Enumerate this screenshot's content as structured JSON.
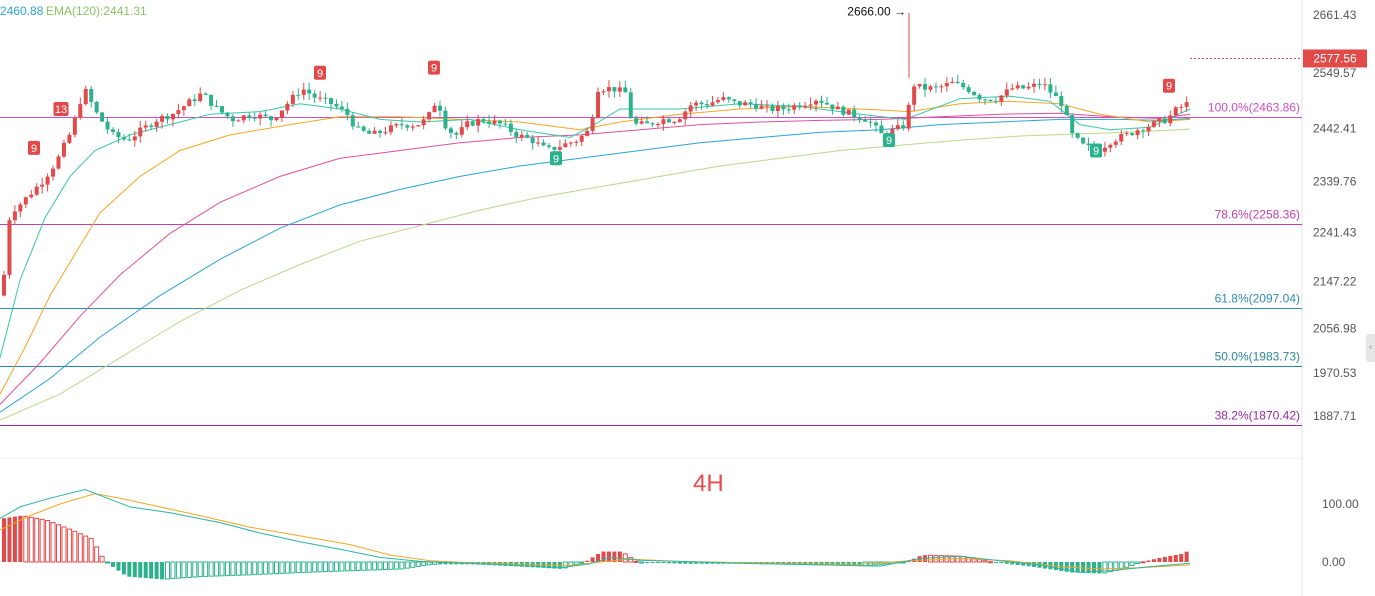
{
  "header": {
    "ema_a": "2460.88",
    "ema_b_label": "EMA(120):2441.31"
  },
  "timeframe": "4H",
  "colors": {
    "up": "#e24a4a",
    "down": "#2bb28c",
    "ema_short": "#35c7a8",
    "ema_mid": "#f5a623",
    "ema_pink": "#e0509a",
    "ema_blue": "#2aa5d6",
    "ema_long": "#b8d98a",
    "diff": "#2bb4a8",
    "dea": "#f5a623"
  },
  "chart_data": {
    "type": "candlestick",
    "y_axis_ticks": [
      "2661.43",
      "2549.57",
      "2442.41",
      "2339.76",
      "2241.43",
      "2147.22",
      "2056.98",
      "1970.53",
      "1887.71"
    ],
    "ylim": [
      1870,
      2680
    ],
    "current_price": "2577.56",
    "high_marker": "2666.00",
    "fib_levels": [
      {
        "label": "100.0%(2463.86)",
        "value": 2463.86,
        "color": "#d04fc3"
      },
      {
        "label": "78.6%(2258.36)",
        "value": 2258.36,
        "color": "#c13fb0"
      },
      {
        "label": "61.8%(2097.04)",
        "value": 2097.04,
        "color": "#2f8bb3"
      },
      {
        "label": "50.0%(1983.73)",
        "value": 1983.73,
        "color": "#2a86a0"
      },
      {
        "label": "38.2%(1870.42)",
        "value": 1870.42,
        "color": "#9a2aa8"
      }
    ],
    "path_points": [
      [
        0,
        2120
      ],
      [
        8,
        2280
      ],
      [
        20,
        2300
      ],
      [
        40,
        2340
      ],
      [
        55,
        2380
      ],
      [
        70,
        2440
      ],
      [
        82,
        2520
      ],
      [
        95,
        2470
      ],
      [
        110,
        2430
      ],
      [
        125,
        2420
      ],
      [
        140,
        2440
      ],
      [
        155,
        2460
      ],
      [
        170,
        2470
      ],
      [
        185,
        2490
      ],
      [
        200,
        2510
      ],
      [
        215,
        2480
      ],
      [
        230,
        2460
      ],
      [
        250,
        2470
      ],
      [
        270,
        2460
      ],
      [
        285,
        2490
      ],
      [
        300,
        2520
      ],
      [
        315,
        2500
      ],
      [
        330,
        2490
      ],
      [
        345,
        2470
      ],
      [
        355,
        2440
      ],
      [
        370,
        2430
      ],
      [
        385,
        2440
      ],
      [
        400,
        2450
      ],
      [
        415,
        2450
      ],
      [
        425,
        2460
      ],
      [
        435,
        2500
      ],
      [
        445,
        2440
      ],
      [
        455,
        2430
      ],
      [
        465,
        2450
      ],
      [
        480,
        2460
      ],
      [
        500,
        2450
      ],
      [
        515,
        2430
      ],
      [
        530,
        2420
      ],
      [
        545,
        2400
      ],
      [
        560,
        2410
      ],
      [
        575,
        2420
      ],
      [
        588,
        2440
      ],
      [
        595,
        2520
      ],
      [
        610,
        2520
      ],
      [
        625,
        2510
      ],
      [
        630,
        2450
      ],
      [
        645,
        2450
      ],
      [
        660,
        2460
      ],
      [
        675,
        2460
      ],
      [
        690,
        2490
      ],
      [
        705,
        2490
      ],
      [
        720,
        2500
      ],
      [
        735,
        2490
      ],
      [
        750,
        2490
      ],
      [
        765,
        2480
      ],
      [
        780,
        2480
      ],
      [
        800,
        2490
      ],
      [
        815,
        2500
      ],
      [
        825,
        2490
      ],
      [
        835,
        2480
      ],
      [
        850,
        2470
      ],
      [
        865,
        2460
      ],
      [
        880,
        2430
      ],
      [
        893,
        2440
      ],
      [
        905,
        2450
      ],
      [
        909,
        2530
      ],
      [
        920,
        2520
      ],
      [
        935,
        2520
      ],
      [
        950,
        2530
      ],
      [
        965,
        2520
      ],
      [
        980,
        2500
      ],
      [
        995,
        2500
      ],
      [
        1010,
        2520
      ],
      [
        1025,
        2520
      ],
      [
        1040,
        2530
      ],
      [
        1050,
        2510
      ],
      [
        1060,
        2490
      ],
      [
        1070,
        2430
      ],
      [
        1080,
        2410
      ],
      [
        1095,
        2400
      ],
      [
        1110,
        2420
      ],
      [
        1125,
        2430
      ],
      [
        1135,
        2440
      ],
      [
        1150,
        2450
      ],
      [
        1165,
        2460
      ],
      [
        1175,
        2480
      ],
      [
        1185,
        2490
      ],
      [
        1190,
        2577.56
      ]
    ],
    "ema_short_pts": [
      [
        0,
        2000
      ],
      [
        20,
        2150
      ],
      [
        45,
        2270
      ],
      [
        70,
        2350
      ],
      [
        95,
        2400
      ],
      [
        130,
        2430
      ],
      [
        170,
        2450
      ],
      [
        210,
        2470
      ],
      [
        260,
        2475
      ],
      [
        300,
        2490
      ],
      [
        340,
        2480
      ],
      [
        380,
        2460
      ],
      [
        420,
        2455
      ],
      [
        470,
        2460
      ],
      [
        520,
        2440
      ],
      [
        570,
        2425
      ],
      [
        590,
        2445
      ],
      [
        620,
        2480
      ],
      [
        680,
        2480
      ],
      [
        740,
        2490
      ],
      [
        800,
        2485
      ],
      [
        860,
        2470
      ],
      [
        905,
        2460
      ],
      [
        960,
        2500
      ],
      [
        1010,
        2505
      ],
      [
        1050,
        2495
      ],
      [
        1080,
        2450
      ],
      [
        1110,
        2440
      ],
      [
        1150,
        2445
      ],
      [
        1190,
        2480
      ]
    ],
    "ema_mid_pts": [
      [
        0,
        1930
      ],
      [
        25,
        2020
      ],
      [
        50,
        2120
      ],
      [
        75,
        2200
      ],
      [
        100,
        2280
      ],
      [
        140,
        2350
      ],
      [
        180,
        2400
      ],
      [
        230,
        2430
      ],
      [
        290,
        2450
      ],
      [
        340,
        2465
      ],
      [
        400,
        2465
      ],
      [
        460,
        2460
      ],
      [
        520,
        2455
      ],
      [
        580,
        2440
      ],
      [
        620,
        2455
      ],
      [
        680,
        2470
      ],
      [
        740,
        2480
      ],
      [
        800,
        2485
      ],
      [
        860,
        2480
      ],
      [
        910,
        2475
      ],
      [
        960,
        2490
      ],
      [
        1010,
        2495
      ],
      [
        1060,
        2490
      ],
      [
        1100,
        2470
      ],
      [
        1150,
        2455
      ],
      [
        1190,
        2460
      ]
    ],
    "ema_pink_pts": [
      [
        0,
        1910
      ],
      [
        40,
        1990
      ],
      [
        80,
        2080
      ],
      [
        120,
        2160
      ],
      [
        170,
        2240
      ],
      [
        220,
        2300
      ],
      [
        280,
        2350
      ],
      [
        340,
        2385
      ],
      [
        400,
        2400
      ],
      [
        460,
        2415
      ],
      [
        520,
        2425
      ],
      [
        580,
        2430
      ],
      [
        640,
        2440
      ],
      [
        700,
        2450
      ],
      [
        760,
        2455
      ],
      [
        820,
        2458
      ],
      [
        880,
        2460
      ],
      [
        940,
        2465
      ],
      [
        1000,
        2470
      ],
      [
        1060,
        2472
      ],
      [
        1110,
        2465
      ],
      [
        1160,
        2462
      ],
      [
        1190,
        2470
      ]
    ],
    "ema_blue_pts": [
      [
        0,
        1895
      ],
      [
        50,
        1960
      ],
      [
        100,
        2040
      ],
      [
        160,
        2120
      ],
      [
        220,
        2190
      ],
      [
        280,
        2250
      ],
      [
        340,
        2295
      ],
      [
        400,
        2325
      ],
      [
        460,
        2350
      ],
      [
        520,
        2370
      ],
      [
        580,
        2385
      ],
      [
        640,
        2400
      ],
      [
        700,
        2415
      ],
      [
        760,
        2425
      ],
      [
        820,
        2435
      ],
      [
        880,
        2440
      ],
      [
        940,
        2450
      ],
      [
        1000,
        2455
      ],
      [
        1060,
        2460
      ],
      [
        1120,
        2460
      ],
      [
        1160,
        2458
      ],
      [
        1190,
        2462
      ]
    ],
    "ema_long_pts": [
      [
        0,
        1880
      ],
      [
        60,
        1930
      ],
      [
        120,
        2000
      ],
      [
        180,
        2070
      ],
      [
        240,
        2130
      ],
      [
        300,
        2180
      ],
      [
        360,
        2225
      ],
      [
        420,
        2255
      ],
      [
        480,
        2285
      ],
      [
        540,
        2310
      ],
      [
        600,
        2330
      ],
      [
        660,
        2350
      ],
      [
        720,
        2370
      ],
      [
        780,
        2385
      ],
      [
        840,
        2400
      ],
      [
        900,
        2410
      ],
      [
        960,
        2420
      ],
      [
        1020,
        2428
      ],
      [
        1080,
        2432
      ],
      [
        1140,
        2436
      ],
      [
        1190,
        2441.31
      ]
    ],
    "td_markers": [
      {
        "x": 34,
        "v": 2405,
        "label": "9",
        "side": "up"
      },
      {
        "x": 61,
        "v": 2480,
        "label": "13",
        "side": "up"
      },
      {
        "x": 320,
        "v": 2550,
        "label": "9",
        "side": "up"
      },
      {
        "x": 434,
        "v": 2560,
        "label": "9",
        "side": "up"
      },
      {
        "x": 556,
        "v": 2385,
        "label": "9",
        "side": "down"
      },
      {
        "x": 889,
        "v": 2420,
        "label": "9",
        "side": "down"
      },
      {
        "x": 1096,
        "v": 2400,
        "label": "9",
        "side": "down"
      },
      {
        "x": 1169,
        "v": 2525,
        "label": "9",
        "side": "up"
      }
    ],
    "macd": {
      "ticks": [
        "100.00",
        "0.00"
      ],
      "ylim": [
        -35,
        145
      ],
      "diff_pts": [
        [
          0,
          75
        ],
        [
          20,
          95
        ],
        [
          50,
          110
        ],
        [
          85,
          125
        ],
        [
          100,
          115
        ],
        [
          130,
          95
        ],
        [
          170,
          85
        ],
        [
          220,
          68
        ],
        [
          260,
          50
        ],
        [
          300,
          35
        ],
        [
          340,
          22
        ],
        [
          380,
          8
        ],
        [
          420,
          1
        ],
        [
          470,
          -2
        ],
        [
          520,
          -6
        ],
        [
          560,
          -10
        ],
        [
          590,
          -3
        ],
        [
          610,
          8
        ],
        [
          640,
          3
        ],
        [
          700,
          0
        ],
        [
          760,
          -3
        ],
        [
          820,
          -5
        ],
        [
          880,
          -7
        ],
        [
          920,
          6
        ],
        [
          960,
          10
        ],
        [
          1000,
          2
        ],
        [
          1040,
          -5
        ],
        [
          1080,
          -18
        ],
        [
          1110,
          -15
        ],
        [
          1150,
          -8
        ],
        [
          1190,
          -2
        ]
      ],
      "dea_pts": [
        [
          0,
          55
        ],
        [
          30,
          80
        ],
        [
          60,
          100
        ],
        [
          95,
          118
        ],
        [
          120,
          110
        ],
        [
          160,
          95
        ],
        [
          200,
          80
        ],
        [
          250,
          60
        ],
        [
          300,
          45
        ],
        [
          350,
          30
        ],
        [
          390,
          12
        ],
        [
          430,
          2
        ],
        [
          480,
          -2
        ],
        [
          530,
          -4
        ],
        [
          570,
          -6
        ],
        [
          600,
          0
        ],
        [
          630,
          5
        ],
        [
          680,
          1
        ],
        [
          740,
          -1
        ],
        [
          800,
          -3
        ],
        [
          860,
          -4
        ],
        [
          910,
          2
        ],
        [
          960,
          6
        ],
        [
          1010,
          2
        ],
        [
          1060,
          -8
        ],
        [
          1100,
          -12
        ],
        [
          1140,
          -10
        ],
        [
          1190,
          -5
        ]
      ],
      "hist_pts": [
        [
          0,
          75
        ],
        [
          20,
          80
        ],
        [
          45,
          72
        ],
        [
          70,
          55
        ],
        [
          90,
          40
        ],
        [
          100,
          10
        ],
        [
          108,
          -5
        ],
        [
          125,
          -25
        ],
        [
          160,
          -30
        ],
        [
          200,
          -25
        ],
        [
          250,
          -22
        ],
        [
          300,
          -18
        ],
        [
          350,
          -15
        ],
        [
          400,
          -12
        ],
        [
          430,
          -4
        ],
        [
          470,
          -4
        ],
        [
          520,
          -8
        ],
        [
          560,
          -12
        ],
        [
          585,
          2
        ],
        [
          600,
          18
        ],
        [
          620,
          18
        ],
        [
          635,
          0
        ],
        [
          680,
          -3
        ],
        [
          740,
          -3
        ],
        [
          800,
          -5
        ],
        [
          860,
          -7
        ],
        [
          905,
          0
        ],
        [
          920,
          12
        ],
        [
          960,
          10
        ],
        [
          990,
          0
        ],
        [
          1030,
          -8
        ],
        [
          1070,
          -18
        ],
        [
          1100,
          -20
        ],
        [
          1120,
          -12
        ],
        [
          1140,
          0
        ],
        [
          1160,
          8
        ],
        [
          1180,
          14
        ],
        [
          1190,
          22
        ]
      ]
    }
  }
}
